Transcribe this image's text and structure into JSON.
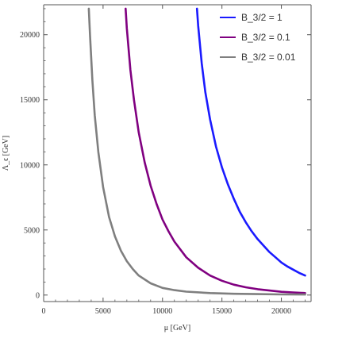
{
  "chart_data": {
    "type": "line",
    "title": "",
    "xlabel": "μ [GeV]",
    "ylabel": "Λ_ϵ [GeV]",
    "xlim": [
      0,
      22500
    ],
    "ylim": [
      -500,
      22300
    ],
    "x_ticks": [
      0,
      5000,
      10000,
      15000,
      20000
    ],
    "x_tick_labels": [
      "0",
      "5000",
      "10000",
      "15000",
      "20000"
    ],
    "y_ticks": [
      0,
      5000,
      10000,
      15000,
      20000
    ],
    "y_tick_labels": [
      "0",
      "5000",
      "10000",
      "15000",
      "20000"
    ],
    "grid": false,
    "legend_position": "top-right",
    "series": [
      {
        "name": "B_3/2 = 1",
        "color": "#1a1aff",
        "x": [
          12900,
          13000,
          13300,
          13600,
          14000,
          14500,
          15000,
          15500,
          16000,
          16500,
          17000,
          17500,
          18000,
          18500,
          19000,
          19500,
          20000,
          20500,
          21000,
          21500,
          22000
        ],
        "y": [
          22000,
          20700,
          17800,
          15600,
          13500,
          11400,
          9800,
          8500,
          7400,
          6400,
          5600,
          4900,
          4300,
          3800,
          3300,
          2900,
          2500,
          2200,
          1950,
          1700,
          1500
        ]
      },
      {
        "name": "B_3/2 = 0.1",
        "color": "#800080",
        "x": [
          6900,
          7000,
          7300,
          7600,
          8000,
          8500,
          9000,
          9500,
          10000,
          10500,
          11000,
          12000,
          13000,
          14000,
          15000,
          16000,
          17000,
          18000,
          19000,
          20000,
          21000,
          22000
        ],
        "y": [
          22000,
          20500,
          17300,
          15000,
          12500,
          10200,
          8400,
          7000,
          5800,
          4900,
          4100,
          2900,
          2100,
          1500,
          1100,
          800,
          600,
          450,
          350,
          250,
          200,
          150
        ]
      },
      {
        "name": "B_3/2 = 0.01",
        "color": "#7f7f7f",
        "x": [
          3800,
          3900,
          4100,
          4300,
          4600,
          5000,
          5500,
          6000,
          6500,
          7000,
          7500,
          8000,
          9000,
          10000,
          11000,
          12000,
          14000,
          16000,
          18000,
          20000,
          22000
        ],
        "y": [
          22000,
          20000,
          16500,
          13800,
          11000,
          8300,
          6000,
          4500,
          3400,
          2600,
          2000,
          1500,
          900,
          550,
          380,
          260,
          150,
          100,
          70,
          50,
          40
        ]
      }
    ]
  }
}
